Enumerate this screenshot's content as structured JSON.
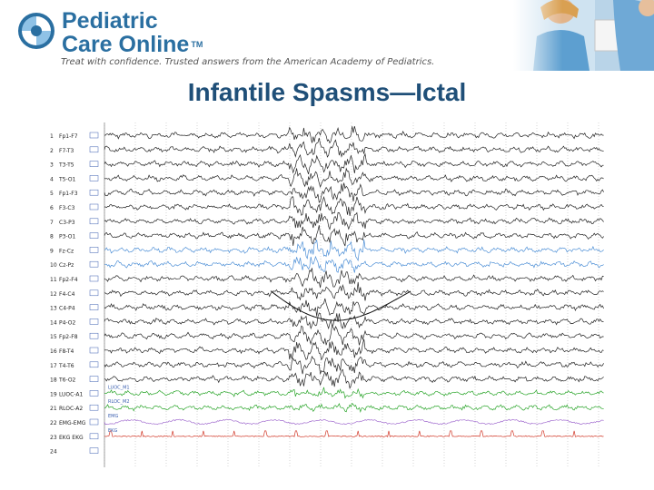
{
  "header": {
    "brand_line1": "Pediatric",
    "brand_line2": "Care Online",
    "trademark": "TM",
    "tagline": "Treat with confidence. Trusted answers from the American Academy of Pediatrics."
  },
  "slide": {
    "title": "Infantile Spasms—Ictal"
  },
  "eeg": {
    "channels": [
      {
        "num": "1",
        "label": "Fp1-F7"
      },
      {
        "num": "2",
        "label": "F7-T3"
      },
      {
        "num": "3",
        "label": "T3-T5"
      },
      {
        "num": "4",
        "label": "T5-O1"
      },
      {
        "num": "5",
        "label": "Fp1-F3"
      },
      {
        "num": "6",
        "label": "F3-C3"
      },
      {
        "num": "7",
        "label": "C3-P3"
      },
      {
        "num": "8",
        "label": "P3-O1"
      },
      {
        "num": "9",
        "label": "Fz-Cz"
      },
      {
        "num": "10",
        "label": "Cz-Pz"
      },
      {
        "num": "11",
        "label": "Fp2-F4"
      },
      {
        "num": "12",
        "label": "F4-C4"
      },
      {
        "num": "13",
        "label": "C4-P4"
      },
      {
        "num": "14",
        "label": "P4-O2"
      },
      {
        "num": "15",
        "label": "Fp2-F8"
      },
      {
        "num": "16",
        "label": "F8-T4"
      },
      {
        "num": "17",
        "label": "T4-T6"
      },
      {
        "num": "18",
        "label": "T6-O2"
      },
      {
        "num": "19",
        "label": "LUOC-A1"
      },
      {
        "num": "21",
        "label": "RLOC-A2"
      },
      {
        "num": "22",
        "label": "EMG-EMG"
      },
      {
        "num": "23",
        "label": "EKG EKG"
      },
      {
        "num": "24",
        "label": ""
      }
    ],
    "trace_labels": [
      "LUOC_M1",
      "RLOC_M2",
      "EMG",
      "EKG"
    ],
    "colors": {
      "default": "#222222",
      "blue": "#4d8fd6",
      "green": "#2aa52a",
      "purple": "#a36fd0",
      "red": "#d23a2a",
      "grid": "#b8b8b8",
      "label_box": "#3a5fb0"
    }
  }
}
